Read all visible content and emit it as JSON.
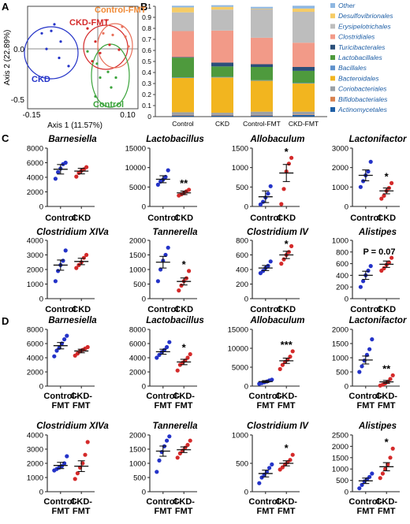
{
  "panel_letters": {
    "A": "A",
    "B": "B",
    "C": "C",
    "D": "D"
  },
  "colors": {
    "control": "#2433c8",
    "ckd": "#d42a2a",
    "control_fmt_ellipse": "#3aa33a",
    "ckd_fmt_ellipse": "#e8705a",
    "control_fmt_label": "#f08a36"
  },
  "chart_data": [
    {
      "id": "A",
      "type": "scatter",
      "xlabel": "Axis 1 (11.57%)",
      "ylabel": "Axis 2 (22.89%)",
      "xticks": [
        "-0.15",
        "0.10"
      ],
      "yticks": [
        "0.0",
        "-0.5"
      ],
      "xlim": [
        -0.17,
        0.18
      ],
      "ylim": [
        -0.7,
        0.55
      ],
      "series": [
        {
          "name": "CKD",
          "color": "#2433c8",
          "points": [
            [
              -0.125,
              0.22
            ],
            [
              -0.085,
              0.33
            ],
            [
              -0.065,
              0.12
            ],
            [
              -0.11,
              0.03
            ],
            [
              -0.07,
              -0.08
            ],
            [
              -0.04,
              -0.18
            ],
            [
              -0.095,
              0.25
            ]
          ]
        },
        {
          "name": "CKD-FMT",
          "color": "#d42a2a",
          "points": [
            [
              0.02,
              0.28
            ],
            [
              0.045,
              0.12
            ],
            [
              0.09,
              0.08
            ],
            [
              0.12,
              0.02
            ],
            [
              0.06,
              -0.02
            ],
            [
              0.035,
              -0.12
            ]
          ]
        },
        {
          "name": "Control",
          "color": "#3aa33a",
          "points": [
            [
              0.02,
              0.0
            ],
            [
              0.05,
              -0.15
            ],
            [
              0.085,
              -0.25
            ],
            [
              0.11,
              -0.32
            ],
            [
              0.06,
              -0.32
            ],
            [
              0.095,
              -0.44
            ],
            [
              0.045,
              -0.55
            ]
          ]
        },
        {
          "name": "Control-FMT",
          "color": "#e8705a",
          "points": [
            [
              0.08,
              0.38
            ],
            [
              0.13,
              0.3
            ],
            [
              0.14,
              0.18
            ],
            [
              0.1,
              0.2
            ],
            [
              0.15,
              0.06
            ],
            [
              0.07,
              0.22
            ]
          ]
        }
      ]
    },
    {
      "id": "B",
      "type": "bar",
      "stacked": true,
      "categories": [
        "Control",
        "CKD",
        "Control-FMT",
        "CKD-FMT"
      ],
      "yticks": [
        "0",
        "0.1",
        "0.2",
        "0.3",
        "0.4",
        "0.5",
        "0.6",
        "0.7",
        "0.8",
        "0.9",
        "1"
      ],
      "ylim": [
        0,
        1
      ],
      "series": [
        {
          "name": "Actinomycetales",
          "color": "#1f5fa6",
          "values": [
            0.01,
            0.01,
            0.01,
            0.015
          ]
        },
        {
          "name": "Bifidobacteriales",
          "color": "#d9824f",
          "values": [
            0.005,
            0.005,
            0.005,
            0.005
          ]
        },
        {
          "name": "Coriobacteriales",
          "color": "#9aa0a6",
          "values": [
            0.025,
            0.02,
            0.03,
            0.025
          ]
        },
        {
          "name": "Bacteroidales",
          "color": "#f2b51f",
          "values": [
            0.31,
            0.32,
            0.28,
            0.255
          ]
        },
        {
          "name": "Bacillales",
          "color": "#5f91cc",
          "values": [
            0.005,
            0.005,
            0.005,
            0.005
          ]
        },
        {
          "name": "Lactobacillales",
          "color": "#4e9a3d",
          "values": [
            0.18,
            0.095,
            0.12,
            0.11
          ]
        },
        {
          "name": "Turicibacterales",
          "color": "#2b4f7a",
          "values": [
            0.005,
            0.035,
            0.025,
            0.035
          ]
        },
        {
          "name": "Clostridiales",
          "color": "#f29a88",
          "values": [
            0.235,
            0.29,
            0.24,
            0.22
          ]
        },
        {
          "name": "Erysipelotrichales",
          "color": "#bdbdbd",
          "values": [
            0.17,
            0.19,
            0.26,
            0.28
          ]
        },
        {
          "name": "Desulfovibrionales",
          "color": "#f6cc66",
          "values": [
            0.045,
            0.025,
            0.005,
            0.03
          ]
        },
        {
          "name": "Other",
          "color": "#8eb7e1",
          "values": [
            0.015,
            0.015,
            0.015,
            0.025
          ]
        }
      ]
    },
    {
      "id": "C1",
      "type": "scatter",
      "title": "Barnesiella",
      "categories": [
        "Control",
        "CKD"
      ],
      "yticks": [
        "0",
        "2000",
        "4000",
        "6000",
        "8000"
      ],
      "ylim": [
        0,
        8000
      ],
      "sig": "",
      "means": [
        5100,
        4850
      ],
      "sems": [
        650,
        380
      ],
      "values": [
        [
          3800,
          4700,
          5200,
          5800,
          6000
        ],
        [
          4100,
          4600,
          4900,
          5100,
          5400
        ]
      ]
    },
    {
      "id": "C2",
      "type": "scatter",
      "title": "Lactobacillus",
      "categories": [
        "Control",
        "CKD"
      ],
      "yticks": [
        "0",
        "5000",
        "10000",
        "15000"
      ],
      "ylim": [
        0,
        15000
      ],
      "sig": "**",
      "means": [
        7000,
        3500
      ],
      "sems": [
        900,
        450
      ],
      "values": [
        [
          5600,
          6400,
          6900,
          7600,
          9300
        ],
        [
          2800,
          3100,
          3400,
          3900,
          4300
        ]
      ]
    },
    {
      "id": "C3",
      "type": "scatter",
      "title": "Allobaculum",
      "categories": [
        "Control",
        "CKD"
      ],
      "yticks": [
        "0",
        "500",
        "1000",
        "1500"
      ],
      "ylim": [
        0,
        1500
      ],
      "sig": "*",
      "means": [
        250,
        860
      ],
      "sems": [
        150,
        220
      ],
      "values": [
        [
          50,
          120,
          230,
          330,
          520
        ],
        [
          60,
          450,
          900,
          1100,
          1250
        ]
      ]
    },
    {
      "id": "C4",
      "type": "scatter",
      "title": "Lactonifactor",
      "categories": [
        "Control",
        "CKD"
      ],
      "yticks": [
        "0",
        "1000",
        "2000",
        "3000"
      ],
      "ylim": [
        0,
        3000
      ],
      "sig": "*",
      "means": [
        1600,
        800
      ],
      "sems": [
        280,
        150
      ],
      "values": [
        [
          1000,
          1300,
          1600,
          1800,
          2300
        ],
        [
          400,
          550,
          800,
          950,
          1200
        ]
      ]
    },
    {
      "id": "C5",
      "type": "scatter",
      "title": "Clostridium XIVa",
      "categories": [
        "Control",
        "CKD"
      ],
      "yticks": [
        "0",
        "1000",
        "2000",
        "3000",
        "4000"
      ],
      "ylim": [
        0,
        4000
      ],
      "sig": "",
      "means": [
        2300,
        2550
      ],
      "sems": [
        350,
        220
      ],
      "values": [
        [
          1200,
          1900,
          2300,
          2600,
          3300
        ],
        [
          2100,
          2300,
          2500,
          2800,
          3000
        ]
      ]
    },
    {
      "id": "C6",
      "type": "scatter",
      "title": "Tannerella",
      "categories": [
        "Control",
        "CKD"
      ],
      "yticks": [
        "0",
        "500",
        "1000",
        "1500",
        "2000"
      ],
      "ylim": [
        0,
        2000
      ],
      "sig": "*",
      "means": [
        1250,
        590
      ],
      "sems": [
        200,
        120
      ],
      "values": [
        [
          600,
          1000,
          1300,
          1500,
          1750
        ],
        [
          280,
          450,
          600,
          700,
          950
        ]
      ]
    },
    {
      "id": "C7",
      "type": "scatter",
      "title": "Clostridium IV",
      "categories": [
        "Control",
        "CKD"
      ],
      "yticks": [
        "0",
        "200",
        "400",
        "600",
        "800"
      ],
      "ylim": [
        0,
        800
      ],
      "sig": "*",
      "means": [
        420,
        600
      ],
      "sems": [
        35,
        50
      ],
      "values": [
        [
          350,
          380,
          420,
          450,
          510
        ],
        [
          480,
          540,
          600,
          640,
          720
        ]
      ]
    },
    {
      "id": "C8",
      "type": "scatter",
      "title": "Alistipes",
      "categories": [
        "Control",
        "CKD"
      ],
      "yticks": [
        "0",
        "200",
        "400",
        "600",
        "800",
        "1000"
      ],
      "ylim": [
        0,
        1000
      ],
      "sig": "P = 0.07",
      "means": [
        400,
        590
      ],
      "sems": [
        70,
        55
      ],
      "values": [
        [
          200,
          300,
          400,
          480,
          560
        ],
        [
          480,
          520,
          580,
          620,
          700
        ]
      ]
    },
    {
      "id": "D1",
      "type": "scatter",
      "title": "Barnesiella",
      "categories": [
        "Control-\nFMT",
        "CKD-\nFMT"
      ],
      "yticks": [
        "0",
        "2000",
        "4000",
        "6000",
        "8000"
      ],
      "ylim": [
        0,
        8000
      ],
      "sig": "",
      "means": [
        5700,
        4950
      ],
      "sems": [
        450,
        250
      ],
      "values": [
        [
          4200,
          5000,
          5400,
          6000,
          6600,
          7100
        ],
        [
          4300,
          4600,
          4900,
          5100,
          5300,
          5500
        ]
      ]
    },
    {
      "id": "D2",
      "type": "scatter",
      "title": "Lactobacillus",
      "categories": [
        "Control-\nFMT",
        "CKD-\nFMT"
      ],
      "yticks": [
        "0",
        "2000",
        "4000",
        "6000",
        "8000"
      ],
      "ylim": [
        0,
        8000
      ],
      "sig": "*",
      "means": [
        4850,
        3400
      ],
      "sems": [
        350,
        380
      ],
      "values": [
        [
          4000,
          4400,
          4800,
          5100,
          5500,
          6200
        ],
        [
          2200,
          3000,
          3300,
          3600,
          4000,
          4500
        ]
      ]
    },
    {
      "id": "D3",
      "type": "scatter",
      "title": "Allobaculum",
      "categories": [
        "Control-\nFMT",
        "CKD-\nFMT"
      ],
      "yticks": [
        "0",
        "5000",
        "10000",
        "15000"
      ],
      "ylim": [
        0,
        15000
      ],
      "sig": "***",
      "means": [
        1200,
        6700
      ],
      "sems": [
        250,
        700
      ],
      "values": [
        [
          600,
          800,
          1000,
          1200,
          1500,
          1700
        ],
        [
          4500,
          5600,
          6400,
          7000,
          7800,
          9200
        ]
      ]
    },
    {
      "id": "D4",
      "type": "scatter",
      "title": "Lactonifactor",
      "categories": [
        "Control-\nFMT",
        "CKD-\nFMT"
      ],
      "yticks": [
        "0",
        "500",
        "1000",
        "1500",
        "2000"
      ],
      "ylim": [
        0,
        2000
      ],
      "sig": "**",
      "means": [
        920,
        150
      ],
      "sems": [
        140,
        50
      ],
      "values": [
        [
          500,
          700,
          900,
          1100,
          1300,
          1650
        ],
        [
          20,
          50,
          100,
          150,
          250,
          380
        ]
      ]
    },
    {
      "id": "D5",
      "type": "scatter",
      "title": "Clostridium XIVa",
      "categories": [
        "Control-\nFMT",
        "CKD-\nFMT"
      ],
      "yticks": [
        "0",
        "1000",
        "2000",
        "3000",
        "4000"
      ],
      "ylim": [
        0,
        4000
      ],
      "sig": "",
      "means": [
        1850,
        1800
      ],
      "sems": [
        220,
        380
      ],
      "values": [
        [
          1500,
          1600,
          1700,
          1800,
          2000,
          2500
        ],
        [
          900,
          1300,
          1700,
          2000,
          2600,
          3500
        ]
      ]
    },
    {
      "id": "D6",
      "type": "scatter",
      "title": "Tannerella",
      "categories": [
        "Control-\nFMT",
        "CKD-\nFMT"
      ],
      "yticks": [
        "0",
        "500",
        "1000",
        "1500",
        "2000"
      ],
      "ylim": [
        0,
        2000
      ],
      "sig": "",
      "means": [
        1430,
        1480
      ],
      "sems": [
        180,
        100
      ],
      "values": [
        [
          700,
          1100,
          1400,
          1600,
          1800,
          1950
        ],
        [
          1200,
          1350,
          1450,
          1550,
          1650,
          1800
        ]
      ]
    },
    {
      "id": "D7",
      "type": "scatter",
      "title": "Clostridium IV",
      "categories": [
        "Control-\nFMT",
        "CKD-\nFMT"
      ],
      "yticks": [
        "0",
        "500",
        "1000"
      ],
      "ylim": [
        0,
        1000
      ],
      "sig": "*",
      "means": [
        320,
        500
      ],
      "sems": [
        60,
        45
      ],
      "values": [
        [
          150,
          250,
          300,
          350,
          420,
          480
        ],
        [
          390,
          430,
          480,
          520,
          560,
          650
        ]
      ]
    },
    {
      "id": "D8",
      "type": "scatter",
      "title": "Alistipes",
      "categories": [
        "Control-\nFMT",
        "CKD-\nFMT"
      ],
      "yticks": [
        "0",
        "500",
        "1000",
        "1500",
        "2000",
        "2500"
      ],
      "ylim": [
        0,
        2500
      ],
      "sig": "*",
      "means": [
        480,
        1100
      ],
      "sems": [
        120,
        180
      ],
      "values": [
        [
          150,
          300,
          450,
          550,
          650,
          800
        ],
        [
          600,
          800,
          1000,
          1200,
          1500,
          1900
        ]
      ]
    }
  ]
}
